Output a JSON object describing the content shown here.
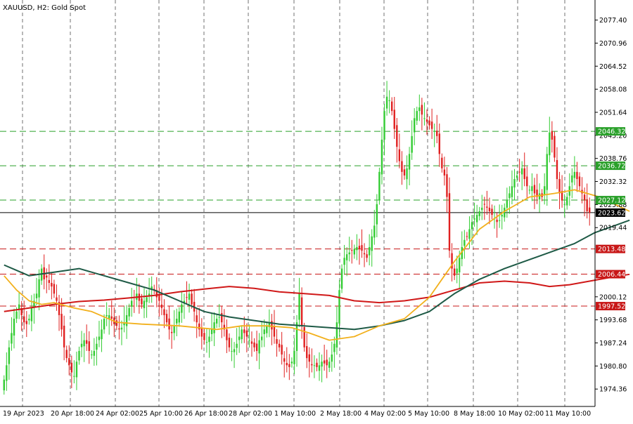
{
  "header": {
    "title": "XAUUSD, H2:  Gold Spot"
  },
  "chart_data": {
    "type": "candlestick",
    "title": "XAUUSD, H2:  Gold Spot",
    "ylim": [
      1969.5,
      2083.0
    ],
    "grid": true,
    "colors": {
      "bull": "#33cc33",
      "bear": "#e02020",
      "ma_fast": "#f2b01c",
      "ma_slow": "#1e5a46",
      "ma_long": "#d01818",
      "level_support": "#c81818",
      "level_resistance": "#2aa02a",
      "current_price": "#000000"
    },
    "y_ticks": [
      "2077.40",
      "2070.96",
      "2064.52",
      "2058.08",
      "2051.64",
      "2045.20",
      "2038.76",
      "2032.32",
      "2025.88",
      "2019.44",
      "2000.12",
      "1993.68",
      "1987.24",
      "1980.80",
      "1974.36"
    ],
    "x_ticks": [
      "19 Apr 2023",
      "20 Apr 18:00",
      "24 Apr 02:00",
      "25 Apr 10:00",
      "26 Apr 18:00",
      "28 Apr 02:00",
      "1 May 10:00",
      "2 May 18:00",
      "4 May 02:00",
      "5 May 10:00",
      "8 May 18:00",
      "10 May 02:00",
      "11 May 10:00"
    ],
    "levels": [
      {
        "label": "2046.32",
        "value": 2046.32,
        "kind": "resistance"
      },
      {
        "label": "2036.72",
        "value": 2036.72,
        "kind": "resistance"
      },
      {
        "label": "2027.12",
        "value": 2027.12,
        "kind": "resistance"
      },
      {
        "label": "2013.48",
        "value": 2013.48,
        "kind": "support"
      },
      {
        "label": "2006.44",
        "value": 2006.44,
        "kind": "support"
      },
      {
        "label": "1997.52",
        "value": 1997.52,
        "kind": "support"
      }
    ],
    "current_price": {
      "label": "2023.62",
      "value": 2023.62
    },
    "candles_close": [
      1977.0,
      1981.0,
      1986.0,
      1990.0,
      1994.0,
      1996.0,
      1998.0,
      1995.0,
      1993.0,
      1992.5,
      1994.0,
      1997.0,
      1999.0,
      2001.0,
      2005.0,
      2008.0,
      2005.0,
      2005.5,
      2004.0,
      2003.0,
      2001.0,
      1999.0,
      1995.0,
      1991.0,
      1986.0,
      1983.0,
      1981.0,
      1979.0,
      1978.0,
      1982.0,
      1985.0,
      1987.0,
      1988.0,
      1987.0,
      1985.0,
      1984.0,
      1985.0,
      1987.0,
      1989.0,
      1991.0,
      1994.0,
      1995.0,
      1995.0,
      1994.0,
      1992.5,
      1992.0,
      1991.0,
      1991.5,
      1993.0,
      1995.0,
      1997.0,
      1999.0,
      2000.0,
      2001.0,
      1999.0,
      1998.0,
      1999.0,
      2000.0,
      2001.0,
      2003.0,
      2002.0,
      2000.0,
      1999.0,
      1997.0,
      1995.0,
      1993.0,
      1991.0,
      1990.0,
      1992.0,
      1994.0,
      1996.0,
      1998.0,
      1999.0,
      2000.0,
      2001.0,
      1998.0,
      1996.0,
      1993.0,
      1991.0,
      1989.0,
      1988.0,
      1987.5,
      1989.0,
      1991.0,
      1993.0,
      1994.0,
      1994.5,
      1993.0,
      1991.0,
      1988.0,
      1986.0,
      1985.0,
      1985.5,
      1987.0,
      1989.0,
      1991.0,
      1990.0,
      1989.0,
      1988.0,
      1987.0,
      1986.0,
      1985.0,
      1988.0,
      1989.0,
      1991.0,
      1992.0,
      1993.0,
      1991.0,
      1989.0,
      1987.0,
      1986.0,
      1984.0,
      1982.0,
      1981.0,
      1980.5,
      1982.0,
      1985.0,
      1993.0,
      2001.0,
      1992.0,
      1986.0,
      1983.0,
      1982.0,
      1981.0,
      1981.0,
      1980.5,
      1981.0,
      1982.0,
      1981.5,
      1981.0,
      1982.0,
      1984.0,
      1987.0,
      1993.0,
      2002.0,
      2008.0,
      2011.0,
      2012.0,
      2012.5,
      2013.0,
      2013.5,
      2014.0,
      2013.5,
      2013.0,
      2012.0,
      2011.0,
      2014.0,
      2017.0,
      2020.0,
      2026.0,
      2035.0,
      2044.0,
      2052.0,
      2056.0,
      2055.0,
      2052.0,
      2047.0,
      2042.0,
      2038.0,
      2035.0,
      2034.0,
      2036.0,
      2040.0,
      2045.0,
      2050.0,
      2052.0,
      2053.0,
      2051.0,
      2050.0,
      2049.0,
      2048.0,
      2047.0,
      2046.5,
      2045.0,
      2040.0,
      2036.0,
      2034.0,
      2028.0,
      2013.0,
      2008.0,
      2006.0,
      2008.0,
      2011.0,
      2014.0,
      2016.0,
      2017.0,
      2019.0,
      2021.0,
      2022.0,
      2023.0,
      2024.0,
      2025.0,
      2026.0,
      2025.0,
      2024.0,
      2023.0,
      2022.0,
      2021.0,
      2021.5,
      2023.0,
      2025.0,
      2027.0,
      2029.0,
      2031.0,
      2033.0,
      2034.0,
      2035.0,
      2036.0,
      2033.0,
      2031.0,
      2030.0,
      2031.0,
      2029.0,
      2028.0,
      2029.0,
      2028.0,
      2031.0,
      2040.0,
      2046.0,
      2044.0,
      2039.0,
      2033.0,
      2029.0,
      2027.0,
      2026.0,
      2028.0,
      2031.0,
      2034.0,
      2035.0,
      2033.0,
      2031.0,
      2029.0,
      2027.0,
      2024.0,
      2023.6
    ],
    "ma_fast": [
      [
        0,
        2006.0
      ],
      [
        5,
        2002.0
      ],
      [
        10,
        1999.0
      ],
      [
        15,
        1998.0
      ],
      [
        20,
        1998.5
      ],
      [
        28,
        1997.0
      ],
      [
        35,
        1996.0
      ],
      [
        45,
        1993.0
      ],
      [
        55,
        1992.5
      ],
      [
        70,
        1992.0
      ],
      [
        85,
        1991.0
      ],
      [
        95,
        1992.0
      ],
      [
        105,
        1992.0
      ],
      [
        115,
        1991.5
      ],
      [
        122,
        1990.0
      ],
      [
        130,
        1988.0
      ],
      [
        140,
        1989.0
      ],
      [
        150,
        1992.0
      ],
      [
        160,
        1994.0
      ],
      [
        170,
        2000.0
      ],
      [
        180,
        2010.0
      ],
      [
        190,
        2019.0
      ],
      [
        200,
        2024.0
      ],
      [
        210,
        2028.0
      ],
      [
        220,
        2029.0
      ],
      [
        228,
        2030.0
      ],
      [
        238,
        2028.0
      ],
      [
        244,
        2026.0
      ],
      [
        250,
        2024.0
      ]
    ],
    "ma_slow": [
      [
        0,
        2009.0
      ],
      [
        10,
        2006.0
      ],
      [
        20,
        2007.0
      ],
      [
        30,
        2008.0
      ],
      [
        40,
        2006.0
      ],
      [
        50,
        2004.0
      ],
      [
        60,
        2002.0
      ],
      [
        70,
        1999.0
      ],
      [
        80,
        1996.0
      ],
      [
        90,
        1994.5
      ],
      [
        100,
        1993.5
      ],
      [
        110,
        1992.5
      ],
      [
        120,
        1992.0
      ],
      [
        130,
        1991.5
      ],
      [
        140,
        1991.0
      ],
      [
        150,
        1992.0
      ],
      [
        160,
        1993.5
      ],
      [
        170,
        1996.0
      ],
      [
        180,
        2001.0
      ],
      [
        190,
        2005.0
      ],
      [
        200,
        2008.0
      ],
      [
        210,
        2010.5
      ],
      [
        220,
        2013.0
      ],
      [
        228,
        2015.0
      ],
      [
        236,
        2018.0
      ],
      [
        244,
        2020.0
      ],
      [
        250,
        2021.5
      ]
    ],
    "ma_long": [
      [
        0,
        1996.0
      ],
      [
        10,
        1997.0
      ],
      [
        20,
        1998.0
      ],
      [
        30,
        1998.8
      ],
      [
        40,
        1999.2
      ],
      [
        50,
        1999.8
      ],
      [
        60,
        2000.5
      ],
      [
        70,
        2001.5
      ],
      [
        80,
        2002.3
      ],
      [
        90,
        2003.0
      ],
      [
        100,
        2002.5
      ],
      [
        110,
        2001.5
      ],
      [
        120,
        2001.0
      ],
      [
        130,
        2000.5
      ],
      [
        140,
        1999.0
      ],
      [
        150,
        1998.5
      ],
      [
        160,
        1999.0
      ],
      [
        170,
        2000.0
      ],
      [
        180,
        2002.0
      ],
      [
        190,
        2004.0
      ],
      [
        200,
        2004.5
      ],
      [
        210,
        2004.0
      ],
      [
        218,
        2003.0
      ],
      [
        226,
        2003.5
      ],
      [
        234,
        2004.5
      ],
      [
        242,
        2005.5
      ],
      [
        250,
        2006.4
      ]
    ]
  }
}
